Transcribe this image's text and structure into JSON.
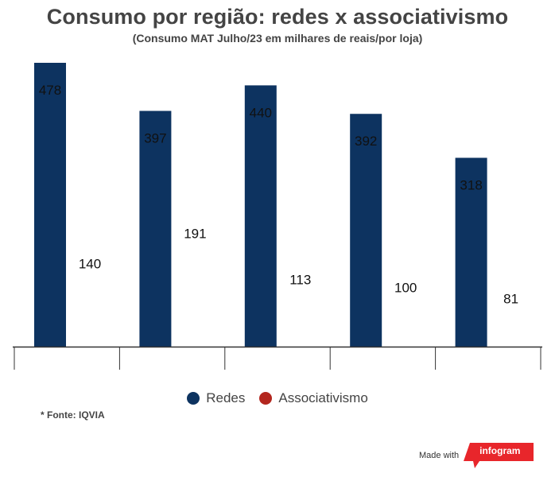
{
  "header": {
    "title": "Consumo por região: redes x associativismo",
    "subtitle": "(Consumo MAT Julho/23 em milhares de reais/por loja)"
  },
  "chart_data": {
    "type": "bar",
    "title": "Consumo por região: redes x associativismo",
    "subtitle": "(Consumo MAT Julho/23 em milhares de reais/por loja)",
    "categories": [
      "",
      "",
      "",
      "",
      ""
    ],
    "series": [
      {
        "name": "Redes",
        "color": "#0d3360",
        "values": [
          478,
          397,
          440,
          392,
          318
        ]
      },
      {
        "name": "Associativismo",
        "color": "#b3261e",
        "values": [
          140,
          191,
          113,
          100,
          81
        ]
      }
    ],
    "ylim": [
      0,
      478
    ],
    "grid": false,
    "legend": "bottom",
    "xlabel": "",
    "ylabel": ""
  },
  "legend": {
    "redes": {
      "label": "Redes",
      "color": "#0d3360"
    },
    "associativismo": {
      "label": "Associativismo",
      "color": "#b3261e"
    }
  },
  "footer": {
    "source": "* Fonte: IQVIA",
    "made_with": "Made with",
    "brand": "infogram",
    "brand_color": "#e8262b"
  }
}
